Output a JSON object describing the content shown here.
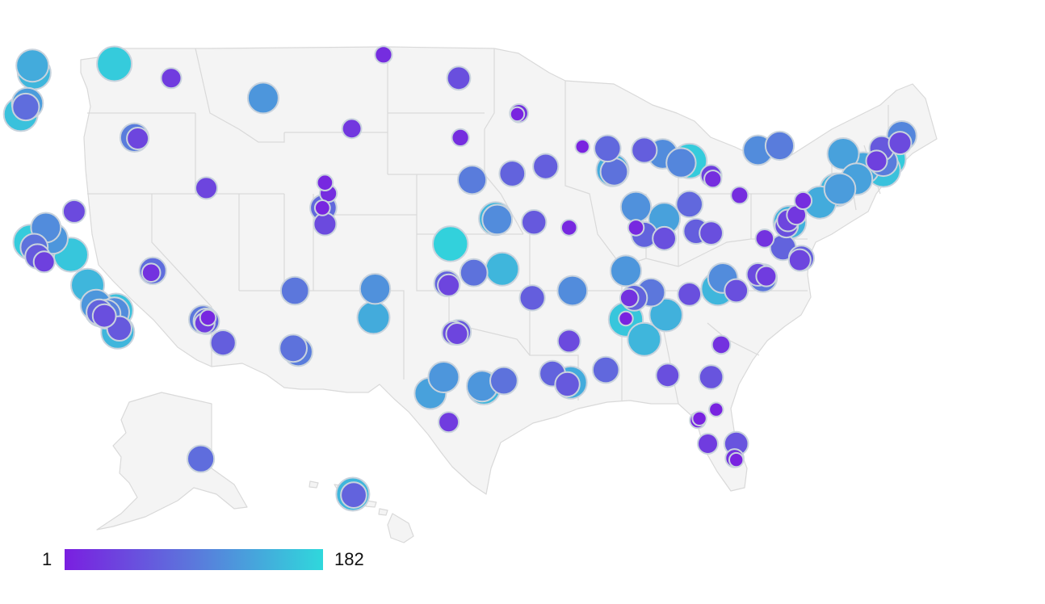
{
  "legend": {
    "min_label": "1",
    "max_label": "182",
    "min_value": 1,
    "max_value": 182,
    "color_low": "#7a1fe0",
    "color_mid": "#5b78dc",
    "color_high": "#2fd8dc"
  },
  "map": {
    "land_color": "#f4f4f4",
    "border_color": "#d9d9d9",
    "bubble_outline": "#c9d3dd"
  },
  "points": [
    {
      "lon": -122.3,
      "lat": 47.6,
      "v": 140
    },
    {
      "lon": -122.2,
      "lat": 47.2,
      "v": 150
    },
    {
      "lon": -117.4,
      "lat": 47.7,
      "v": 170
    },
    {
      "lon": -122.6,
      "lat": 45.5,
      "v": 125
    },
    {
      "lon": -122.7,
      "lat": 45.3,
      "v": 80
    },
    {
      "lon": -123.0,
      "lat": 44.9,
      "v": 160
    },
    {
      "lon": -114.0,
      "lat": 46.9,
      "v": 30
    },
    {
      "lon": -108.5,
      "lat": 45.8,
      "v": 120
    },
    {
      "lon": -116.2,
      "lat": 43.6,
      "v": 95
    },
    {
      "lon": -116.0,
      "lat": 43.55,
      "v": 40
    },
    {
      "lon": -101.3,
      "lat": 48.2,
      "v": 15
    },
    {
      "lon": -96.8,
      "lat": 46.9,
      "v": 50
    },
    {
      "lon": -103.2,
      "lat": 44.1,
      "v": 25
    },
    {
      "lon": -96.7,
      "lat": 43.6,
      "v": 15
    },
    {
      "lon": -104.8,
      "lat": 41.1,
      "v": 10
    },
    {
      "lon": -111.9,
      "lat": 40.8,
      "v": 40
    },
    {
      "lon": -104.9,
      "lat": 39.7,
      "v": 75
    },
    {
      "lon": -104.95,
      "lat": 39.7,
      "v": 8
    },
    {
      "lon": -104.8,
      "lat": 38.8,
      "v": 45
    },
    {
      "lon": -104.6,
      "lat": 40.5,
      "v": 15
    },
    {
      "lon": -119.8,
      "lat": 39.5,
      "v": 45
    },
    {
      "lon": -115.1,
      "lat": 36.2,
      "v": 80
    },
    {
      "lon": -115.2,
      "lat": 36.1,
      "v": 20
    },
    {
      "lon": -122.4,
      "lat": 37.8,
      "v": 170
    },
    {
      "lon": -121.9,
      "lat": 37.3,
      "v": 130
    },
    {
      "lon": -122.0,
      "lat": 37.0,
      "v": 60
    },
    {
      "lon": -122.2,
      "lat": 37.5,
      "v": 85
    },
    {
      "lon": -121.5,
      "lat": 38.6,
      "v": 110
    },
    {
      "lon": -121.6,
      "lat": 36.7,
      "v": 35
    },
    {
      "lon": -121.1,
      "lat": 38.0,
      "v": 120
    },
    {
      "lon": -120.0,
      "lat": 37.1,
      "v": 165
    },
    {
      "lon": -119.0,
      "lat": 35.4,
      "v": 150
    },
    {
      "lon": -118.5,
      "lat": 34.3,
      "v": 120
    },
    {
      "lon": -118.2,
      "lat": 34.0,
      "v": 140
    },
    {
      "lon": -117.9,
      "lat": 33.8,
      "v": 100
    },
    {
      "lon": -118.3,
      "lat": 33.9,
      "v": 70
    },
    {
      "lon": -117.3,
      "lat": 34.0,
      "v": 160
    },
    {
      "lon": -117.4,
      "lat": 33.9,
      "v": 110
    },
    {
      "lon": -117.2,
      "lat": 32.8,
      "v": 150
    },
    {
      "lon": -117.1,
      "lat": 33.0,
      "v": 60
    },
    {
      "lon": -118.0,
      "lat": 33.7,
      "v": 50
    },
    {
      "lon": -112.1,
      "lat": 33.5,
      "v": 90
    },
    {
      "lon": -111.9,
      "lat": 33.4,
      "v": 70
    },
    {
      "lon": -112.0,
      "lat": 33.3,
      "v": 30
    },
    {
      "lon": -111.8,
      "lat": 33.6,
      "v": 10
    },
    {
      "lon": -110.9,
      "lat": 32.2,
      "v": 65
    },
    {
      "lon": -106.6,
      "lat": 35.1,
      "v": 90
    },
    {
      "lon": -106.7,
      "lat": 31.9,
      "v": 85
    },
    {
      "lon": -106.4,
      "lat": 31.7,
      "v": 95
    },
    {
      "lon": -101.8,
      "lat": 35.2,
      "v": 115
    },
    {
      "lon": -101.9,
      "lat": 33.6,
      "v": 140
    },
    {
      "lon": -97.5,
      "lat": 35.5,
      "v": 70
    },
    {
      "lon": -97.4,
      "lat": 35.4,
      "v": 40
    },
    {
      "lon": -95.9,
      "lat": 36.1,
      "v": 85
    },
    {
      "lon": -94.6,
      "lat": 39.1,
      "v": 150
    },
    {
      "lon": -94.5,
      "lat": 39.05,
      "v": 110
    },
    {
      "lon": -96.0,
      "lat": 41.25,
      "v": 95
    },
    {
      "lon": -93.6,
      "lat": 41.6,
      "v": 70
    },
    {
      "lon": -91.6,
      "lat": 42.0,
      "v": 65
    },
    {
      "lon": -97.3,
      "lat": 37.7,
      "v": 175
    },
    {
      "lon": -92.3,
      "lat": 38.9,
      "v": 60
    },
    {
      "lon": -92.4,
      "lat": 34.7,
      "v": 65
    },
    {
      "lon": -94.2,
      "lat": 36.3,
      "v": 150
    },
    {
      "lon": -90.2,
      "lat": 38.6,
      "v": 10
    },
    {
      "lon": -93.2,
      "lat": 44.95,
      "v": 20
    },
    {
      "lon": -93.3,
      "lat": 44.9,
      "v": 5
    },
    {
      "lon": -96.8,
      "lat": 32.8,
      "v": 60
    },
    {
      "lon": -96.9,
      "lat": 32.7,
      "v": 40
    },
    {
      "lon": -97.1,
      "lat": 32.75,
      "v": 50
    },
    {
      "lon": -95.4,
      "lat": 29.8,
      "v": 120
    },
    {
      "lon": -95.3,
      "lat": 29.7,
      "v": 150
    },
    {
      "lon": -97.7,
      "lat": 30.3,
      "v": 120
    },
    {
      "lon": -98.5,
      "lat": 29.4,
      "v": 130
    },
    {
      "lon": -97.4,
      "lat": 27.8,
      "v": 30
    },
    {
      "lon": -94.1,
      "lat": 30.1,
      "v": 85
    },
    {
      "lon": -91.2,
      "lat": 30.5,
      "v": 70
    },
    {
      "lon": -90.1,
      "lat": 30.0,
      "v": 140
    },
    {
      "lon": -90.3,
      "lat": 29.9,
      "v": 60
    },
    {
      "lon": -88.0,
      "lat": 30.7,
      "v": 75
    },
    {
      "lon": -90.2,
      "lat": 32.3,
      "v": 45
    },
    {
      "lon": -90.0,
      "lat": 35.1,
      "v": 110
    },
    {
      "lon": -86.8,
      "lat": 36.2,
      "v": 120
    },
    {
      "lon": -86.8,
      "lat": 33.5,
      "v": 165
    },
    {
      "lon": -85.7,
      "lat": 32.4,
      "v": 150
    },
    {
      "lon": -85.3,
      "lat": 35.0,
      "v": 90
    },
    {
      "lon": -86.3,
      "lat": 34.7,
      "v": 70
    },
    {
      "lon": -86.6,
      "lat": 34.7,
      "v": 20
    },
    {
      "lon": -86.8,
      "lat": 33.55,
      "v": 5
    },
    {
      "lon": -84.4,
      "lat": 33.75,
      "v": 145
    },
    {
      "lon": -83.0,
      "lat": 34.9,
      "v": 50
    },
    {
      "lon": -81.3,
      "lat": 35.2,
      "v": 150
    },
    {
      "lon": -81.0,
      "lat": 35.8,
      "v": 110
    },
    {
      "lon": -80.2,
      "lat": 35.1,
      "v": 50
    },
    {
      "lon": -81.1,
      "lat": 32.1,
      "v": 20
    },
    {
      "lon": -84.3,
      "lat": 30.4,
      "v": 50
    },
    {
      "lon": -81.7,
      "lat": 30.3,
      "v": 55
    },
    {
      "lon": -82.5,
      "lat": 27.9,
      "v": 10
    },
    {
      "lon": -82.4,
      "lat": 28.0,
      "v": 5
    },
    {
      "lon": -81.4,
      "lat": 28.5,
      "v": 5
    },
    {
      "lon": -81.9,
      "lat": 26.6,
      "v": 30
    },
    {
      "lon": -80.2,
      "lat": 26.6,
      "v": 55
    },
    {
      "lon": -80.3,
      "lat": 25.8,
      "v": 20
    },
    {
      "lon": -80.2,
      "lat": 25.7,
      "v": 5
    },
    {
      "lon": -84.5,
      "lat": 39.1,
      "v": 130
    },
    {
      "lon": -85.7,
      "lat": 38.2,
      "v": 70
    },
    {
      "lon": -84.5,
      "lat": 38.0,
      "v": 50
    },
    {
      "lon": -83.0,
      "lat": 39.9,
      "v": 75
    },
    {
      "lon": -86.2,
      "lat": 39.75,
      "v": 115
    },
    {
      "lon": -86.2,
      "lat": 38.6,
      "v": 10
    },
    {
      "lon": -82.6,
      "lat": 38.4,
      "v": 65
    },
    {
      "lon": -81.7,
      "lat": 38.3,
      "v": 50
    },
    {
      "lon": -87.6,
      "lat": 41.8,
      "v": 140
    },
    {
      "lon": -87.5,
      "lat": 41.7,
      "v": 85
    },
    {
      "lon": -87.9,
      "lat": 43.0,
      "v": 75
    },
    {
      "lon": -85.7,
      "lat": 42.9,
      "v": 65
    },
    {
      "lon": -89.4,
      "lat": 43.1,
      "v": 5
    },
    {
      "lon": -84.6,
      "lat": 42.7,
      "v": 110
    },
    {
      "lon": -83.0,
      "lat": 42.3,
      "v": 170
    },
    {
      "lon": -83.5,
      "lat": 42.2,
      "v": 105
    },
    {
      "lon": -81.7,
      "lat": 41.5,
      "v": 35
    },
    {
      "lon": -81.6,
      "lat": 41.3,
      "v": 15
    },
    {
      "lon": -80.0,
      "lat": 40.4,
      "v": 15
    },
    {
      "lon": -78.9,
      "lat": 42.9,
      "v": 110
    },
    {
      "lon": -77.6,
      "lat": 43.15,
      "v": 95
    },
    {
      "lon": -73.8,
      "lat": 42.7,
      "v": 130
    },
    {
      "lon": -77.0,
      "lat": 38.9,
      "v": 145
    },
    {
      "lon": -77.1,
      "lat": 39.0,
      "v": 40
    },
    {
      "lon": -77.2,
      "lat": 38.7,
      "v": 50
    },
    {
      "lon": -76.6,
      "lat": 39.3,
      "v": 25
    },
    {
      "lon": -76.2,
      "lat": 40.1,
      "v": 15
    },
    {
      "lon": -78.5,
      "lat": 38.0,
      "v": 20
    },
    {
      "lon": -77.4,
      "lat": 37.5,
      "v": 70
    },
    {
      "lon": -76.3,
      "lat": 36.9,
      "v": 65
    },
    {
      "lon": -76.4,
      "lat": 36.8,
      "v": 40
    },
    {
      "lon": -78.6,
      "lat": 35.8,
      "v": 90
    },
    {
      "lon": -78.9,
      "lat": 36.0,
      "v": 45
    },
    {
      "lon": -78.4,
      "lat": 35.9,
      "v": 30
    },
    {
      "lon": -75.2,
      "lat": 40.0,
      "v": 140
    },
    {
      "lon": -74.2,
      "lat": 40.7,
      "v": 150
    },
    {
      "lon": -74.0,
      "lat": 40.75,
      "v": 125
    },
    {
      "lon": -73.0,
      "lat": 41.3,
      "v": 130
    },
    {
      "lon": -72.6,
      "lat": 41.9,
      "v": 135
    },
    {
      "lon": -71.4,
      "lat": 41.8,
      "v": 160
    },
    {
      "lon": -71.1,
      "lat": 42.4,
      "v": 170
    },
    {
      "lon": -71.4,
      "lat": 42.25,
      "v": 95
    },
    {
      "lon": -71.5,
      "lat": 43.0,
      "v": 60
    },
    {
      "lon": -71.8,
      "lat": 42.3,
      "v": 35
    },
    {
      "lon": -70.3,
      "lat": 43.7,
      "v": 105
    },
    {
      "lon": -70.4,
      "lat": 43.3,
      "v": 45
    },
    {
      "lon": -149.9,
      "lat": 61.2,
      "v": 80
    },
    {
      "lon": -134.4,
      "lat": 58.3,
      "v": 30
    },
    {
      "lon": -157.9,
      "lat": 21.3,
      "v": 150
    },
    {
      "lon": -157.85,
      "lat": 21.25,
      "v": 70
    }
  ]
}
